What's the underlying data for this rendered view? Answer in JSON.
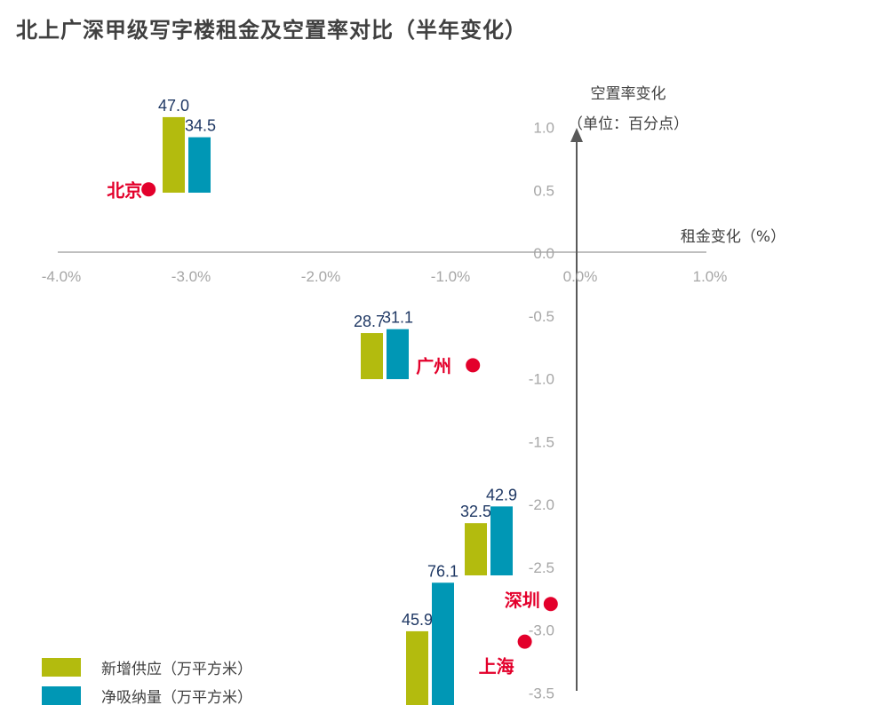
{
  "title": "北上广深甲级写字楼租金及空置率对比（半年变化）",
  "chart_data": {
    "type": "scatter",
    "xlabel": "租金变化（%）",
    "ylabel": "空置率变化",
    "ylabel_unit": "（单位：百分点）",
    "xlim": [
      -4.0,
      1.0
    ],
    "ylim": [
      -3.5,
      1.0
    ],
    "x_ticks": [
      "-4.0%",
      "-3.0%",
      "-2.0%",
      "-1.0%",
      "0.0%",
      "1.0%"
    ],
    "y_ticks": [
      "1.0",
      "0.5",
      "0.0",
      "-0.5",
      "-1.0",
      "-1.5",
      "-2.0",
      "-2.5",
      "-3.0",
      "-3.5"
    ],
    "marker_color": "#e3002b",
    "points": [
      {
        "name": "北京",
        "x": -3.3,
        "y": 0.5
      },
      {
        "name": "广州",
        "x": -0.8,
        "y": -0.9
      },
      {
        "name": "深圳",
        "x": -0.2,
        "y": -2.8
      },
      {
        "name": "上海",
        "x": -0.4,
        "y": -3.1
      }
    ],
    "bar_series": [
      {
        "name": "新增供应（万平方米）",
        "color": "#b3bb0e",
        "values": [
          47.0,
          28.7,
          32.5,
          45.9
        ]
      },
      {
        "name": "净吸纳量（万平方米）",
        "color": "#0097b5",
        "values": [
          34.5,
          31.1,
          42.9,
          76.1
        ]
      }
    ],
    "bar_labels": [
      [
        "47.0",
        "34.5"
      ],
      [
        "28.7",
        "31.1"
      ],
      [
        "32.5",
        "42.9"
      ],
      [
        "45.9",
        "76.1"
      ]
    ],
    "legend": "bottom-left",
    "grid": false
  }
}
